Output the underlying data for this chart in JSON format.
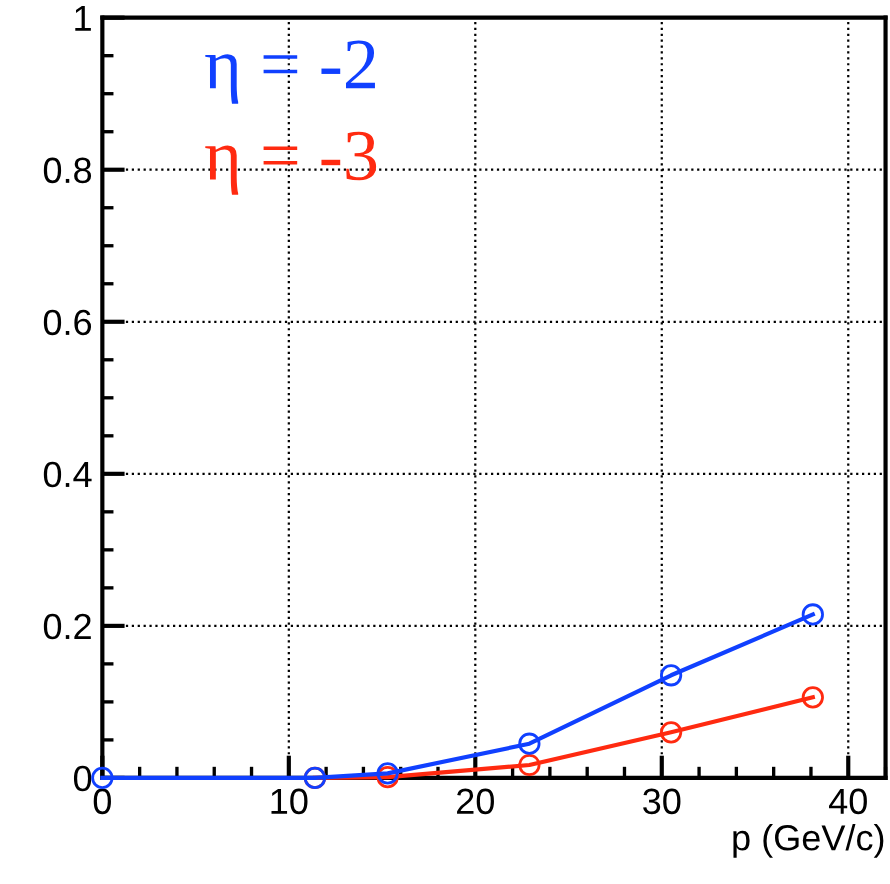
{
  "chart_data": {
    "type": "line",
    "xlabel": "p (GeV/c)",
    "xlim": [
      0,
      42
    ],
    "xticks": [
      0,
      10,
      20,
      30,
      40
    ],
    "ylim": [
      0,
      1
    ],
    "yticks": [
      0,
      0.2,
      0.4,
      0.6,
      0.8,
      1
    ],
    "grid": true,
    "marker": "circle",
    "line_style": "solid",
    "legend": "top left",
    "series": [
      {
        "name": "η = -3",
        "color": "#ff2a10",
        "x": [
          11.4,
          15.3,
          22.9,
          30.5,
          38.1
        ],
        "values": [
          0,
          0.001,
          0.017,
          0.06,
          0.106
        ]
      },
      {
        "name": "η = -2",
        "color": "#1040ff",
        "x": [
          0,
          11.4,
          15.3,
          22.9,
          30.5,
          38.1
        ],
        "values": [
          0,
          0,
          0.006,
          0.045,
          0.135,
          0.215
        ]
      }
    ]
  }
}
